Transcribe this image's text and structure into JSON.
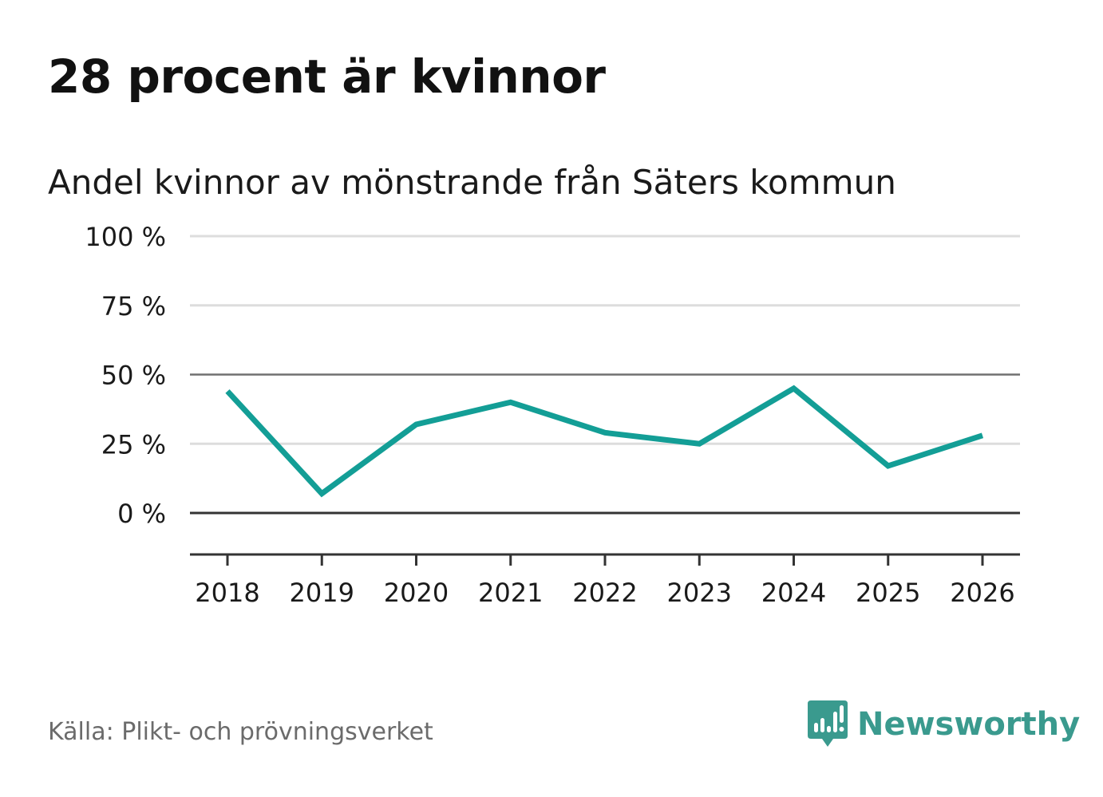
{
  "title": "28 procent är kvinnor",
  "subtitle": "Andel kvinnor av mönstrande från Säters kommun",
  "source": "Källa: Plikt- och prövningsverket",
  "brand": {
    "name": "Newsworthy",
    "icon": "chart-speech-bubble-icon"
  },
  "colors": {
    "line": "#139E96",
    "brand": "#3A9A8E",
    "grid": "#dddddd",
    "axis": "#333333",
    "midline": "#707070",
    "text": "#1a1a1a",
    "source": "#6b6b6b"
  },
  "chart_data": {
    "type": "line",
    "title": "28 procent är kvinnor",
    "subtitle": "Andel kvinnor av mönstrande från Säters kommun",
    "xlabel": "",
    "ylabel": "",
    "categories": [
      "2018",
      "2019",
      "2020",
      "2021",
      "2022",
      "2023",
      "2024",
      "2025",
      "2026"
    ],
    "series": [
      {
        "name": "Andel kvinnor",
        "values": [
          44,
          7,
          32,
          40,
          29,
          25,
          45,
          17,
          28
        ]
      }
    ],
    "ylim": [
      -15,
      100
    ],
    "yticks": [
      0,
      25,
      50,
      75,
      100
    ],
    "ytick_labels": [
      "0 %",
      "25 %",
      "50 %",
      "75 %",
      "100 %"
    ],
    "grid": true
  }
}
